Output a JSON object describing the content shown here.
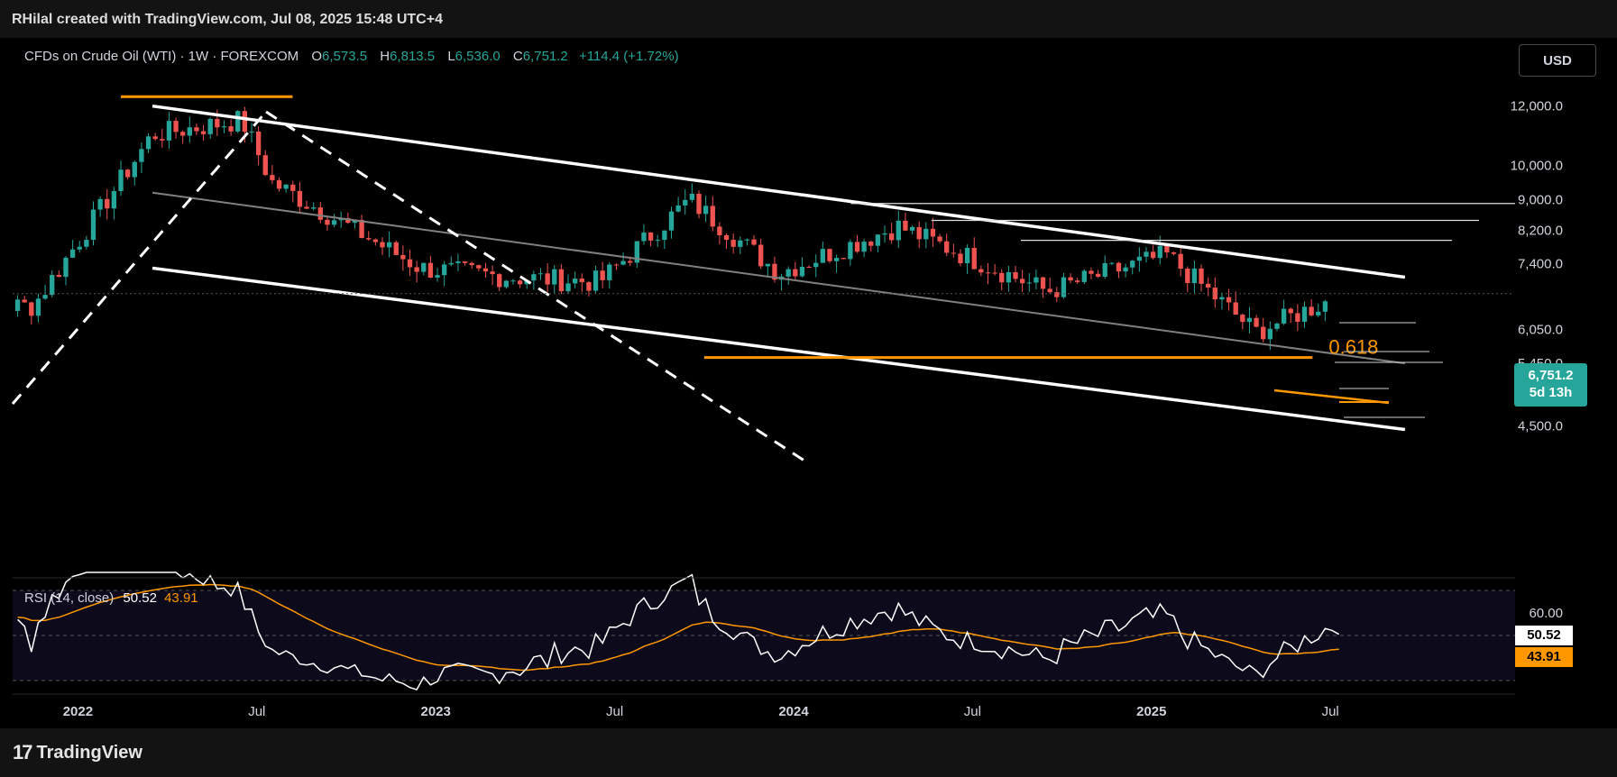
{
  "header": {
    "credit": "RHilal created with TradingView.com, Jul 08, 2025 15:48 UTC+4"
  },
  "legend": {
    "symbol": "CFDs on Crude Oil (WTI) · 1W · FOREXCOM",
    "open_label": "O",
    "open": "6,573.5",
    "high_label": "H",
    "high": "6,813.5",
    "low_label": "L",
    "low": "6,536.0",
    "close_label": "C",
    "close": "6,751.2",
    "change": "+114.4 (+1.72%)"
  },
  "currency_button": "USD",
  "last_price": {
    "value": "6,751.2",
    "countdown": "5d 13h"
  },
  "fib_label": "0.618",
  "rsi": {
    "label": "RSI (14, close)",
    "value": "50.52",
    "ma_value": "43.91",
    "axis_label": "60.00"
  },
  "footer": {
    "brand": "TradingView",
    "logo": "17"
  },
  "colors": {
    "up": "#26a69a",
    "down": "#ef5350",
    "orange": "#ff9800",
    "channel": "#ffffff",
    "midline": "#808080",
    "rsi_line": "#ffffff",
    "rsi_ma": "#ff9800"
  },
  "chart_data": [
    {
      "type": "candlestick",
      "title": "CFDs on Crude Oil (WTI) · 1W · FOREXCOM",
      "x_tick_labels": [
        "2022",
        "Jul",
        "2023",
        "Jul",
        "2024",
        "Jul",
        "2025",
        "Jul"
      ],
      "y_tick_labels": [
        "12,000.0",
        "10,000.0",
        "9,000.0",
        "8,200.0",
        "7,400.0",
        "6,050.0",
        "5,450.0",
        "4,950.0",
        "4,500.0"
      ],
      "y_scale": "log",
      "last_ohlc": {
        "open": 6573.5,
        "high": 6813.5,
        "low": 6536.0,
        "close": 6751.2
      },
      "key_points": [
        {
          "x": "2021-11",
          "close": 6500
        },
        {
          "x": "2022-03",
          "high": 12450,
          "close": 11000
        },
        {
          "x": "2022-06",
          "high": 12200,
          "close": 11500
        },
        {
          "x": "2022-07",
          "close": 9500
        },
        {
          "x": "2022-12",
          "low": 7000,
          "close": 7300
        },
        {
          "x": "2023-03",
          "low": 6480,
          "close": 7100
        },
        {
          "x": "2023-06",
          "close": 7000
        },
        {
          "x": "2023-09",
          "high": 9500,
          "close": 9000
        },
        {
          "x": "2023-12",
          "low": 6800,
          "close": 7200
        },
        {
          "x": "2024-04",
          "high": 8700,
          "close": 8300
        },
        {
          "x": "2024-09",
          "low": 6500,
          "close": 6800
        },
        {
          "x": "2025-01",
          "high": 7950,
          "close": 7600
        },
        {
          "x": "2025-04",
          "low": 5540,
          "close": 6000
        },
        {
          "x": "2025-06",
          "high": 7800,
          "close": 6500
        },
        {
          "x": "2025-07",
          "close": 6751.2
        }
      ],
      "annotations": [
        {
          "kind": "channel-upper",
          "from": {
            "x": "2022-03",
            "y": 12000
          },
          "to": {
            "x": "2025-09",
            "y": 7100
          }
        },
        {
          "kind": "channel-middle",
          "from": {
            "x": "2022-03",
            "y": 9200
          },
          "to": {
            "x": "2025-09",
            "y": 5450
          }
        },
        {
          "kind": "channel-lower",
          "from": {
            "x": "2022-03",
            "y": 7300
          },
          "to": {
            "x": "2025-09",
            "y": 4450
          }
        },
        {
          "kind": "horizontal",
          "color": "orange",
          "y": 12350
        },
        {
          "kind": "horizontal",
          "color": "orange",
          "y": 5550,
          "label": "0.618"
        },
        {
          "kind": "horizontal",
          "color": "white",
          "y": 8900
        },
        {
          "kind": "horizontal",
          "color": "white",
          "y": 8450
        },
        {
          "kind": "horizontal",
          "color": "white",
          "y": 7950
        }
      ]
    },
    {
      "type": "line",
      "title": "RSI (14, close)",
      "y_tick_labels": [
        "60.00"
      ],
      "series": [
        {
          "name": "RSI (14, close)",
          "last": 50.52
        },
        {
          "name": "",
          "last": 43.91
        }
      ],
      "levels": [
        70,
        50,
        30
      ]
    }
  ]
}
